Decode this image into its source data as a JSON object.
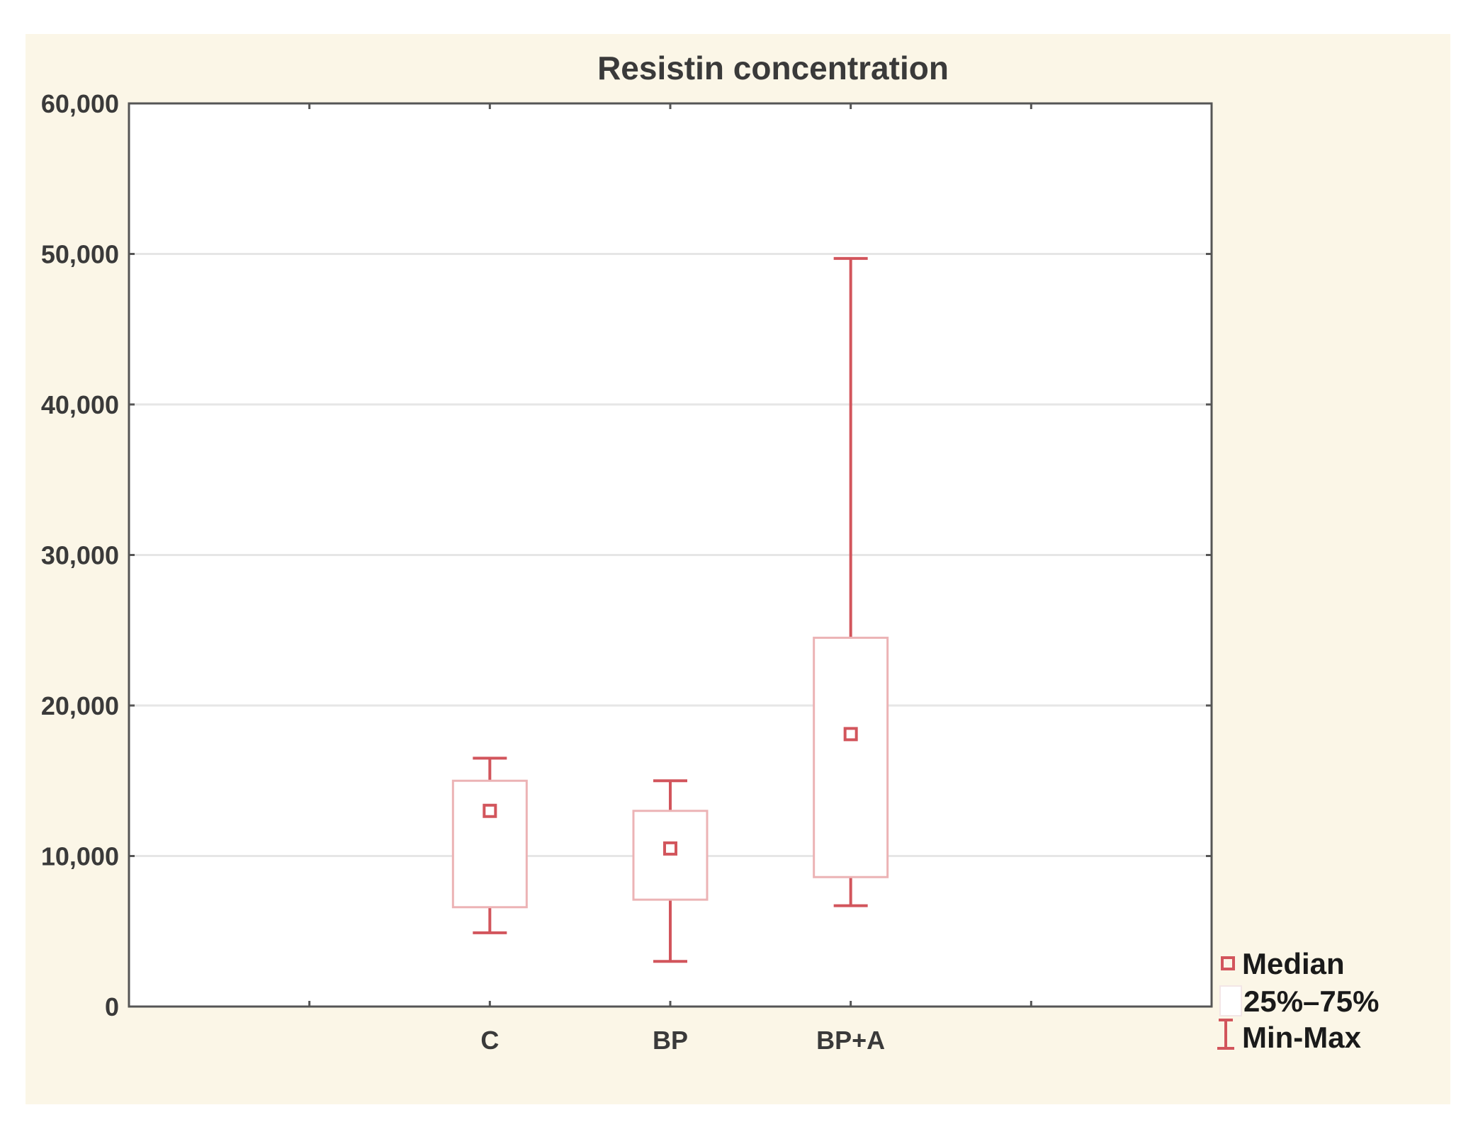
{
  "chart_data": {
    "type": "boxplot",
    "title": "Resistin concentration",
    "xlabel": "",
    "ylabel": "",
    "ylim": [
      0,
      60000
    ],
    "yticks": [
      0,
      10000,
      20000,
      30000,
      40000,
      50000,
      60000
    ],
    "ytick_labels": [
      "0",
      "10,000",
      "20,000",
      "30,000",
      "40,000",
      "50,000",
      "60,000"
    ],
    "grid": true,
    "x_slots": 6,
    "categories": [
      "C",
      "BP",
      "BP+A"
    ],
    "category_slots": [
      2,
      3,
      4
    ],
    "boxes": [
      {
        "category": "C",
        "min": 4900,
        "q1": 6600,
        "median": 13000,
        "q3": 15000,
        "max": 16500
      },
      {
        "category": "BP",
        "min": 3000,
        "q1": 7100,
        "median": 10500,
        "q3": 13000,
        "max": 15000
      },
      {
        "category": "BP+A",
        "min": 6700,
        "q1": 8600,
        "median": 18100,
        "q3": 24500,
        "max": 49700
      }
    ],
    "legend": {
      "position": "bottom-right",
      "entries": [
        "Median",
        "25%–75%",
        "Min-Max"
      ]
    },
    "colors": {
      "series": "#d2555c",
      "box_edge": "#ecb3b5",
      "grid": "#e6e6e6",
      "axis": "#555555",
      "background": "#fbf6e7",
      "plot_area": "#ffffff"
    }
  }
}
